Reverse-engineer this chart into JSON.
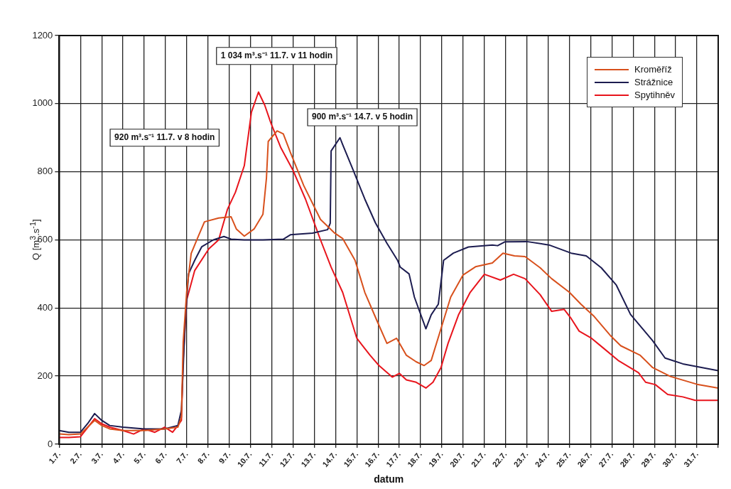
{
  "chart_data": {
    "type": "line",
    "xlabel": "datum",
    "ylabel": "Q [m$^{3}$.s$^{-1}$]",
    "xlim": [
      "--07-01",
      "--08-01"
    ],
    "xticks": [
      {
        "value": "--07-01",
        "label": "1.7."
      },
      {
        "value": "--07-02",
        "label": "2.7."
      },
      {
        "value": "--07-03",
        "label": "3.7."
      },
      {
        "value": "--07-04",
        "label": "4.7."
      },
      {
        "value": "--07-05",
        "label": "5.7."
      },
      {
        "value": "--07-06",
        "label": "6.7."
      },
      {
        "value": "--07-07",
        "label": "7.7."
      },
      {
        "value": "--07-08",
        "label": "8.7."
      },
      {
        "value": "--07-09",
        "label": "9.7."
      },
      {
        "value": "--07-10",
        "label": "10.7."
      },
      {
        "value": "--07-11",
        "label": "11.7."
      },
      {
        "value": "--07-12",
        "label": "12.7."
      },
      {
        "value": "--07-13",
        "label": "13.7."
      },
      {
        "value": "--07-14",
        "label": "14.7."
      },
      {
        "value": "--07-15",
        "label": "15.7."
      },
      {
        "value": "--07-16",
        "label": "16.7."
      },
      {
        "value": "--07-17",
        "label": "17.7."
      },
      {
        "value": "--07-18",
        "label": "18.7."
      },
      {
        "value": "--07-19",
        "label": "19.7."
      },
      {
        "value": "--07-20",
        "label": "20.7."
      },
      {
        "value": "--07-21",
        "label": "21.7."
      },
      {
        "value": "--07-22",
        "label": "22.7."
      },
      {
        "value": "--07-23",
        "label": "23.7."
      },
      {
        "value": "--07-24",
        "label": "24.7."
      },
      {
        "value": "--07-25",
        "label": "25.7."
      },
      {
        "value": "--07-26",
        "label": "26.7."
      },
      {
        "value": "--07-27",
        "label": "27.7."
      },
      {
        "value": "--07-28",
        "label": "28.7."
      },
      {
        "value": "--07-29",
        "label": "29.7."
      },
      {
        "value": "--07-30",
        "label": "30.7."
      },
      {
        "value": "--07-31",
        "label": "31.7."
      },
      {
        "value": "--08-01",
        "label": null
      }
    ],
    "ylim": [
      0,
      1200
    ],
    "yticks": [
      0,
      200,
      400,
      600,
      800,
      1000,
      1200
    ],
    "grid": true,
    "legend": "top right",
    "marker": "none",
    "line_style": "solid",
    "series": [
      {
        "name": "Kroměříž",
        "color": "#d8501c",
        "x": [
          "--07-01T00:00",
          "--07-01T11:00",
          "--07-02T00:00",
          "--07-02T16:00",
          "--07-03T00:00",
          "--07-03T09:00",
          "--07-04T00:00",
          "--07-05T00:00",
          "--07-05T23:00",
          "--07-06T14:00",
          "--07-06T18:00",
          "--07-06T20:00",
          "--07-07T00:00",
          "--07-07T05:00",
          "--07-07T13:00",
          "--07-07T20:00",
          "--07-08T12:00",
          "--07-09T02:00",
          "--07-09T08:00",
          "--07-09T17:00",
          "--07-10T04:00",
          "--07-10T14:00",
          "--07-10T18:00",
          "--07-10T20:00",
          "--07-11T06:00",
          "--07-11T13:00",
          "--07-11T21:00",
          "--07-12T12:00",
          "--07-13T07:00",
          "--07-13T23:00",
          "--07-14T08:00",
          "--07-14T22:00",
          "--07-15T09:00",
          "--07-15T23:00",
          "--07-16T10:00",
          "--07-16T21:00",
          "--07-17T08:00",
          "--07-17T19:00",
          "--07-18T04:00",
          "--07-18T12:00",
          "--07-18T23:00",
          "--07-19T10:00",
          "--07-20T00:00",
          "--07-20T14:00",
          "--07-21T09:00",
          "--07-21T21:00",
          "--07-22T10:00",
          "--07-22T22:00",
          "--07-23T15:00",
          "--07-24T04:00",
          "--07-25T00:00",
          "--07-25T13:00",
          "--07-26T04:00",
          "--07-26T23:00",
          "--07-27T10:00",
          "--07-28T08:00",
          "--07-28T22:00",
          "--07-29T18:00",
          "--07-31T00:00",
          "--08-01T00:00"
        ],
        "values": [
          30,
          28,
          30,
          70,
          55,
          45,
          40,
          40,
          45,
          50,
          80,
          300,
          450,
          560,
          610,
          653,
          664,
          668,
          632,
          611,
          632,
          675,
          782,
          889,
          920,
          911,
          857,
          760,
          660,
          620,
          604,
          540,
          446,
          361,
          296,
          311,
          261,
          242,
          231,
          246,
          339,
          432,
          497,
          521,
          532,
          561,
          553,
          551,
          518,
          486,
          446,
          411,
          375,
          317,
          289,
          261,
          225,
          199,
          176,
          165
        ]
      },
      {
        "name": "Strážnice",
        "color": "#1c1c50",
        "x": [
          "--07-01T00:00",
          "--07-01T11:00",
          "--07-02T00:00",
          "--07-02T08:00",
          "--07-02T16:00",
          "--07-03T00:00",
          "--07-03T09:00",
          "--07-04T00:00",
          "--07-05T00:00",
          "--07-05T23:00",
          "--07-06T14:00",
          "--07-06T18:00",
          "--07-06T22:00",
          "--07-07T02:00",
          "--07-07T09:00",
          "--07-07T17:00",
          "--07-08T06:00",
          "--07-08T18:00",
          "--07-09T02:00",
          "--07-09T17:00",
          "--07-10T14:00",
          "--07-11T13:00",
          "--07-11T21:00",
          "--07-12T22:00",
          "--07-13T15:00",
          "--07-13T18:00",
          "--07-13T19:00",
          "--07-14T05:00",
          "--07-14T08:00",
          "--07-14T20:00",
          "--07-15T09:00",
          "--07-15T21:00",
          "--07-16T10:00",
          "--07-16T22:00",
          "--07-17T01:00",
          "--07-17T11:00",
          "--07-17T17:00",
          "--07-18T06:00",
          "--07-18T12:00",
          "--07-18T20:00",
          "--07-19T02:00",
          "--07-19T13:00",
          "--07-20T06:00",
          "--07-21T09:00",
          "--07-21T15:00",
          "--07-21T23:00",
          "--07-23T00:00",
          "--07-24T01:00",
          "--07-25T02:00",
          "--07-25T19:00",
          "--07-26T12:00",
          "--07-27T05:00",
          "--07-27T21:00",
          "--07-28T22:00",
          "--07-29T12:00",
          "--07-30T08:00",
          "--08-01T00:00"
        ],
        "values": [
          40,
          35,
          35,
          60,
          90,
          70,
          55,
          50,
          45,
          45,
          55,
          100,
          350,
          500,
          540,
          580,
          600,
          610,
          602,
          600,
          600,
          602,
          615,
          620,
          630,
          649,
          861,
          900,
          880,
          804,
          720,
          650,
          590,
          540,
          520,
          500,
          432,
          339,
          380,
          411,
          540,
          561,
          579,
          585,
          583,
          594,
          595,
          585,
          561,
          553,
          518,
          467,
          381,
          304,
          253,
          236,
          216
        ]
      },
      {
        "name": "Spytihněv",
        "color": "#e8141c",
        "x": [
          "--07-01T00:00",
          "--07-01T11:00",
          "--07-02T00:00",
          "--07-02T16:00",
          "--07-03T00:00",
          "--07-03T09:00",
          "--07-04T00:00",
          "--07-04T12:00",
          "--07-05T00:00",
          "--07-05T12:00",
          "--07-05T23:00",
          "--07-06T08:00",
          "--07-06T14:00",
          "--07-06T18:00",
          "--07-06T20:00",
          "--07-07T00:00",
          "--07-07T09:00",
          "--07-08T01:00",
          "--07-08T12:00",
          "--07-08T22:00",
          "--07-09T07:00",
          "--07-09T17:00",
          "--07-10T01:00",
          "--07-10T09:00",
          "--07-10T16:00",
          "--07-10T23:00",
          "--07-11T10:00",
          "--07-12T00:00",
          "--07-12T14:00",
          "--07-13T07:00",
          "--07-13T19:00",
          "--07-14T08:00",
          "--07-15T00:00",
          "--07-15T15:00",
          "--07-16T01:00",
          "--07-16T16:00",
          "--07-17T00:00",
          "--07-17T08:00",
          "--07-17T19:00",
          "--07-18T06:00",
          "--07-18T14:00",
          "--07-18T23:00",
          "--07-19T07:00",
          "--07-19T19:00",
          "--07-20T08:00",
          "--07-21T00:00",
          "--07-21T18:00",
          "--07-22T09:00",
          "--07-22T22:00",
          "--07-23T15:00",
          "--07-24T04:00",
          "--07-24T18:00",
          "--07-25T02:00",
          "--07-25T11:00",
          "--07-26T01:00",
          "--07-26T14:00",
          "--07-27T07:00",
          "--07-28T06:00",
          "--07-28T14:00",
          "--07-29T01:00",
          "--07-29T15:00",
          "--07-30T08:00",
          "--07-30T22:00",
          "--08-01T00:00"
        ],
        "values": [
          20,
          20,
          22,
          75,
          60,
          50,
          40,
          30,
          45,
          35,
          50,
          35,
          55,
          70,
          250,
          424,
          510,
          574,
          600,
          690,
          740,
          818,
          975,
          1034,
          996,
          943,
          872,
          804,
          720,
          600,
          520,
          446,
          311,
          261,
          231,
          197,
          208,
          189,
          182,
          165,
          182,
          225,
          296,
          381,
          446,
          499,
          482,
          499,
          486,
          439,
          390,
          396,
          369,
          332,
          311,
          283,
          246,
          210,
          182,
          175,
          146,
          139,
          129,
          129
        ]
      }
    ],
    "annotations": [
      "1 034 m³.s⁻¹ 11.7. v 11 hodin",
      "920 m³.s⁻¹ 11.7. v 8 hodin",
      "900 m³.s⁻¹ 14.7. v 5 hodin"
    ]
  }
}
